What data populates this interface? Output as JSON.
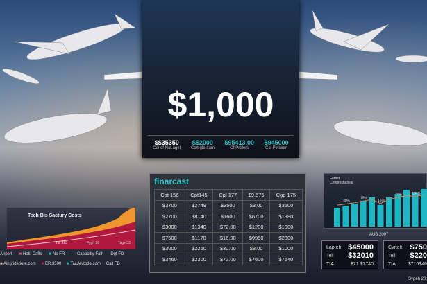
{
  "headline": "$1,000",
  "stats": [
    {
      "value": "$$35350",
      "label": "Cal of Nat.aget",
      "color": "#ffffff"
    },
    {
      "value": "$$2000",
      "label": "Comgle Itam",
      "color": "#2bc0c4"
    },
    {
      "value": "$95413.00",
      "label": "Of Prelers",
      "color": "#2bc0c4"
    },
    {
      "value": "$945000",
      "label": "Cal Pirisium",
      "color": "#2bc0c4"
    }
  ],
  "table": {
    "title": "finarcast",
    "header": [
      "Cat 156",
      "Cpt145",
      "Cpl 177",
      "$9,575",
      "Cgp 175"
    ],
    "rows": [
      [
        "$3700",
        "$2749",
        "$3500",
        "$3.00",
        "$3500"
      ],
      [
        "$2700",
        "$8140",
        "$1600",
        "$6700",
        "$1380"
      ],
      [
        "$3000",
        "$1340",
        "$72.00",
        "$1200",
        "$1000"
      ],
      [
        "$7500",
        "$1170",
        "$16.90",
        "$9950",
        "$2800"
      ],
      [
        "$3000",
        "$2250",
        "$30.00",
        "$8.00",
        "$1000"
      ],
      [
        "$3460",
        "$2300",
        "$72.00",
        "$7600",
        "$7540"
      ]
    ]
  },
  "left_chart": {
    "title": "Tech Bis Sactury Costs",
    "annotations": [
      "Tar 323",
      "Fygh 98",
      "Tage 53"
    ],
    "legend1": [
      "Airport",
      "Hatil Cafts",
      "No FR",
      "Capacitiy Fath",
      "Dgt FD"
    ],
    "legend2": [
      "Aingridetiore.com",
      "ER.3500",
      "Tar.Arvtode.com",
      "Cail FD"
    ]
  },
  "right_chart": {
    "legend": [
      "Farbst",
      "Cengreshatieal"
    ],
    "labels": [
      "30%",
      "15%",
      "16%",
      "70%",
      "DR%"
    ],
    "bars": [
      45,
      50,
      55,
      62,
      70,
      52,
      70,
      78,
      88,
      82,
      90
    ],
    "xlabel": "AUB 2007"
  },
  "box1": [
    [
      "Lapfeh",
      "$45000"
    ],
    [
      "Tell",
      "$32010"
    ],
    [
      "TIA",
      "$71 $7740"
    ]
  ],
  "box2": [
    [
      "Cyrtelt",
      "$750"
    ],
    [
      "Tell",
      "$220"
    ],
    [
      "TIA",
      "$716$46"
    ]
  ],
  "footer": "Sypeh 20"
}
